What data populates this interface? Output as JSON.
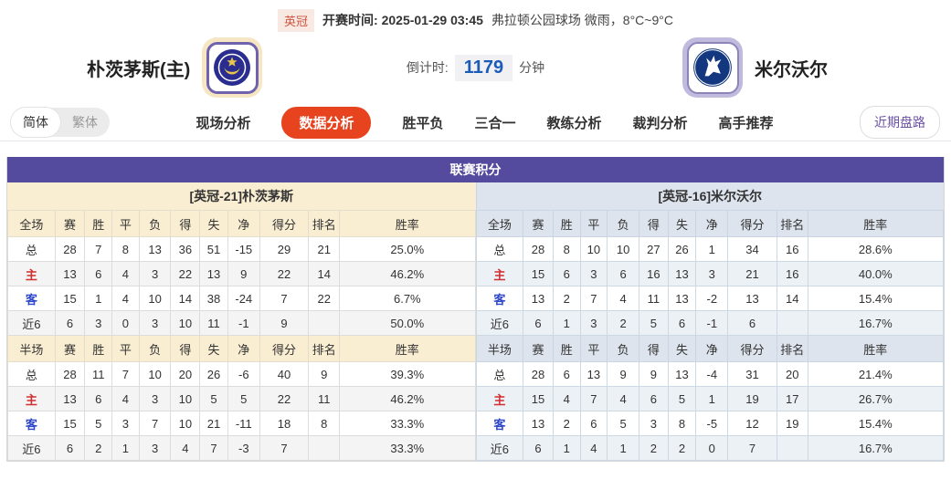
{
  "top_bar": {
    "league": "英冠",
    "kickoff": "开赛时间: 2025-01-29 03:45",
    "venue_weather": "弗拉顿公园球场 微雨，8°C~9°C"
  },
  "teams": {
    "home": {
      "name": "朴茨茅斯(主)",
      "logo_icon": "portsmouth-crest"
    },
    "away": {
      "name": "米尔沃尔",
      "logo_icon": "millwall-crest"
    }
  },
  "countdown": {
    "label": "倒计时:",
    "value": "1179",
    "unit": "分钟"
  },
  "nav": {
    "lang": [
      "简体",
      "繁体"
    ],
    "active_lang": "简体",
    "tabs": [
      {
        "label": "现场分析",
        "active": false
      },
      {
        "label": "数据分析",
        "active": true
      },
      {
        "label": "胜平负",
        "active": false
      },
      {
        "label": "三合一",
        "active": false
      },
      {
        "label": "教练分析",
        "active": false
      },
      {
        "label": "裁判分析",
        "active": false
      },
      {
        "label": "高手推荐",
        "active": false
      }
    ],
    "recent_button": "近期盘路"
  },
  "league_table": {
    "title": "联赛积分",
    "columns_full": [
      "全场",
      "赛",
      "胜",
      "平",
      "负",
      "得",
      "失",
      "净",
      "得分",
      "排名",
      "胜率"
    ],
    "columns_half": [
      "半场",
      "赛",
      "胜",
      "平",
      "负",
      "得",
      "失",
      "净",
      "得分",
      "排名",
      "胜率"
    ],
    "left": {
      "header": "[英冠-21]朴茨茅斯",
      "full_rows": [
        [
          "总",
          "28",
          "7",
          "8",
          "13",
          "36",
          "51",
          "-15",
          "29",
          "21",
          "25.0%"
        ],
        [
          "主",
          "13",
          "6",
          "4",
          "3",
          "22",
          "13",
          "9",
          "22",
          "14",
          "46.2%"
        ],
        [
          "客",
          "15",
          "1",
          "4",
          "10",
          "14",
          "38",
          "-24",
          "7",
          "22",
          "6.7%"
        ],
        [
          "近6",
          "6",
          "3",
          "0",
          "3",
          "10",
          "11",
          "-1",
          "9",
          "",
          "50.0%"
        ]
      ],
      "half_rows": [
        [
          "总",
          "28",
          "11",
          "7",
          "10",
          "20",
          "26",
          "-6",
          "40",
          "9",
          "39.3%"
        ],
        [
          "主",
          "13",
          "6",
          "4",
          "3",
          "10",
          "5",
          "5",
          "22",
          "11",
          "46.2%"
        ],
        [
          "客",
          "15",
          "5",
          "3",
          "7",
          "10",
          "21",
          "-11",
          "18",
          "8",
          "33.3%"
        ],
        [
          "近6",
          "6",
          "2",
          "1",
          "3",
          "4",
          "7",
          "-3",
          "7",
          "",
          "33.3%"
        ]
      ]
    },
    "right": {
      "header": "[英冠-16]米尔沃尔",
      "full_rows": [
        [
          "总",
          "28",
          "8",
          "10",
          "10",
          "27",
          "26",
          "1",
          "34",
          "16",
          "28.6%"
        ],
        [
          "主",
          "15",
          "6",
          "3",
          "6",
          "16",
          "13",
          "3",
          "21",
          "16",
          "40.0%"
        ],
        [
          "客",
          "13",
          "2",
          "7",
          "4",
          "11",
          "13",
          "-2",
          "13",
          "14",
          "15.4%"
        ],
        [
          "近6",
          "6",
          "1",
          "3",
          "2",
          "5",
          "6",
          "-1",
          "6",
          "",
          "16.7%"
        ]
      ],
      "half_rows": [
        [
          "总",
          "28",
          "6",
          "13",
          "9",
          "9",
          "13",
          "-4",
          "31",
          "20",
          "21.4%"
        ],
        [
          "主",
          "15",
          "4",
          "7",
          "4",
          "6",
          "5",
          "1",
          "19",
          "17",
          "26.7%"
        ],
        [
          "客",
          "13",
          "2",
          "6",
          "5",
          "3",
          "8",
          "-5",
          "12",
          "19",
          "15.4%"
        ],
        [
          "近6",
          "6",
          "1",
          "4",
          "1",
          "2",
          "2",
          "0",
          "7",
          "",
          "16.7%"
        ]
      ]
    }
  },
  "colors": {
    "table_header_purple": "#544a9e",
    "active_tab_orange": "#e8431f",
    "home_theme_beige": "#f9edd2",
    "away_theme_blue": "#dee4ed",
    "home_row_label_red": "#d03030",
    "away_row_label_blue": "#2d45c8",
    "countdown_blue": "#1b5cb8",
    "league_badge_red": "#cf5540",
    "recent_button_purple": "#6c51a4"
  }
}
